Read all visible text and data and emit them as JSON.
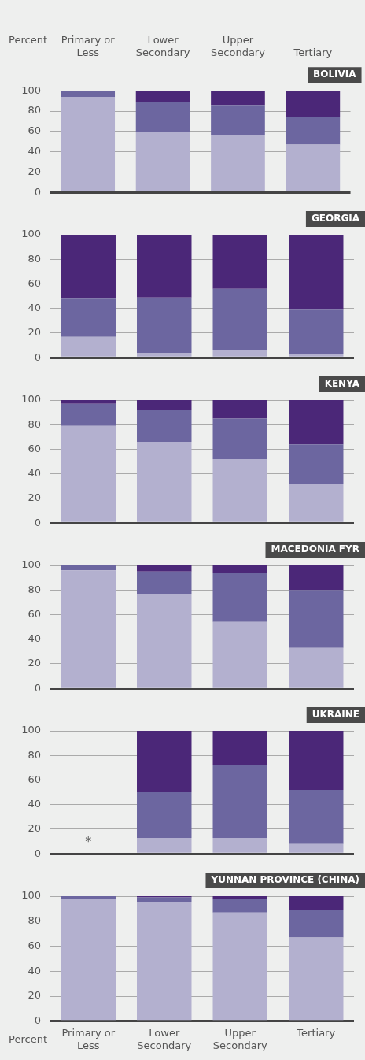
{
  "chart_data": [
    {
      "type": "bar",
      "title": "BOLIVIA",
      "ylabel": "Percent",
      "categories": [
        "Primary or Less",
        "Lower Secondary",
        "Upper Secondary",
        "Tertiary"
      ],
      "stacked": true,
      "ylim": [
        0,
        100
      ],
      "yticks": [
        0,
        20,
        40,
        60,
        80,
        100
      ],
      "grid": "y",
      "legend": false,
      "series": [
        {
          "color": "#b3b0cf",
          "values": [
            94,
            59,
            56,
            47
          ]
        },
        {
          "color": "#6c66a0",
          "values": [
            6,
            30,
            30,
            27
          ]
        },
        {
          "color": "#4b2778",
          "values": [
            0,
            11,
            14,
            26
          ]
        }
      ]
    },
    {
      "type": "bar",
      "title": "GEORGIA",
      "categories": [
        null,
        null,
        null,
        null
      ],
      "stacked": true,
      "ylim": [
        0,
        100
      ],
      "yticks": [
        0,
        20,
        40,
        60,
        80,
        100
      ],
      "grid": "y",
      "legend": false,
      "tick_labels": "y",
      "series": [
        {
          "color": "#b3b0cf",
          "values": [
            17,
            4,
            6,
            3
          ]
        },
        {
          "color": "#6c66a0",
          "values": [
            31,
            45,
            50,
            36
          ]
        },
        {
          "color": "#4b2778",
          "values": [
            52,
            51,
            44,
            61
          ]
        }
      ]
    },
    {
      "type": "bar",
      "title": "KENYA",
      "categories": [
        null,
        null,
        null,
        null
      ],
      "stacked": true,
      "ylim": [
        0,
        100
      ],
      "yticks": [
        0,
        20,
        40,
        60,
        80,
        100
      ],
      "grid": "y",
      "legend": false,
      "tick_labels": "y",
      "series": [
        {
          "color": "#b3b0cf",
          "values": [
            79,
            66,
            52,
            32
          ]
        },
        {
          "color": "#6c66a0",
          "values": [
            18,
            26,
            33,
            32
          ]
        },
        {
          "color": "#4b2778",
          "values": [
            3,
            8,
            15,
            36
          ]
        }
      ]
    },
    {
      "type": "bar",
      "title": "MACEDONIA FYR",
      "categories": [
        null,
        null,
        null,
        null
      ],
      "stacked": true,
      "ylim": [
        0,
        100
      ],
      "yticks": [
        0,
        20,
        40,
        60,
        80,
        100
      ],
      "grid": "y",
      "legend": false,
      "tick_labels": "y",
      "series": [
        {
          "color": "#b3b0cf",
          "values": [
            96,
            77,
            54,
            33
          ]
        },
        {
          "color": "#6c66a0",
          "values": [
            4,
            18,
            40,
            47
          ]
        },
        {
          "color": "#4b2778",
          "values": [
            0,
            5,
            6,
            20
          ]
        }
      ]
    },
    {
      "type": "bar",
      "title": "UKRAINE",
      "categories": [
        null,
        null,
        null,
        null
      ],
      "stacked": true,
      "ylim": [
        0,
        100
      ],
      "yticks": [
        0,
        20,
        40,
        60,
        80,
        100
      ],
      "grid": "y",
      "legend": false,
      "tick_labels": "y",
      "annotations": [
        "*"
      ],
      "series": [
        {
          "color": "#b3b0cf",
          "values": [
            null,
            13,
            13,
            8
          ]
        },
        {
          "color": "#6c66a0",
          "values": [
            null,
            37,
            59,
            44
          ]
        },
        {
          "color": "#4b2778",
          "values": [
            null,
            50,
            28,
            48
          ]
        }
      ]
    },
    {
      "type": "bar",
      "title": "YUNNAN PROVINCE (CHINA)",
      "ylabel": "Percent",
      "categories": [
        "Primary or Less",
        "Lower Secondary",
        "Upper Secondary",
        "Tertiary"
      ],
      "stacked": true,
      "ylim": [
        0,
        100
      ],
      "yticks": [
        0,
        20,
        40,
        60,
        80,
        100
      ],
      "grid": "y",
      "legend": false,
      "series": [
        {
          "color": "#b3b0cf",
          "values": [
            98,
            95,
            87,
            67
          ]
        },
        {
          "color": "#6c66a0",
          "values": [
            2,
            4,
            11,
            22
          ]
        },
        {
          "color": "#4b2778",
          "values": [
            0,
            1,
            2,
            11
          ]
        }
      ]
    }
  ]
}
